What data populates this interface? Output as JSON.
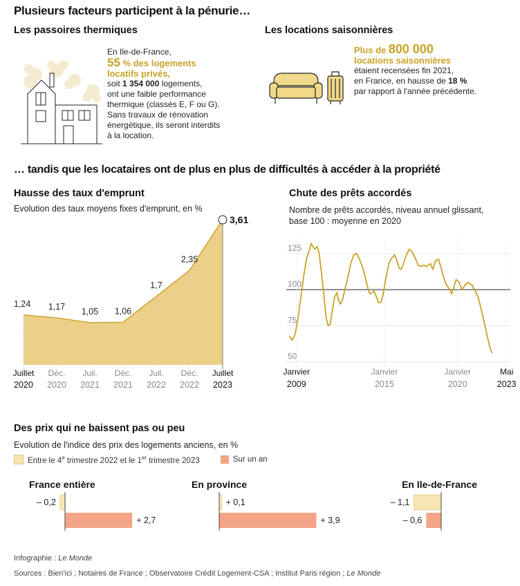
{
  "header": {
    "title": "Plusieurs facteurs participent à la pénurie…",
    "subtitle": "… tandis que les locataires ont de plus en plus de difficultés à accéder à la propriété"
  },
  "passoires": {
    "title": "Les passoires thermiques",
    "line1": "En Ile-de-France,",
    "highlight_number": "55",
    "highlight_text": " % des logements",
    "highlight_line2": "locatifs privés,",
    "line3a": "soit ",
    "line3b": "1 354 000",
    "line3c": " logements,",
    "line4": "ont une faible performance",
    "line5": "thermique (classés E, F ou G).",
    "line6": "Sans travaux de rénovation",
    "line7": "énergétique, ils seront interdits",
    "line8": "à la location."
  },
  "locations": {
    "title": "Les locations saisonnières",
    "highlight_a": "Plus de ",
    "highlight_number": "800 000",
    "highlight_line2": "locations saisonnières",
    "line3": "étaient recensées fin 2021,",
    "line4a": "en France, en hausse de ",
    "line4b": "18 %",
    "line5": "par rapport à l'année précédente."
  },
  "chart_data": [
    {
      "type": "area",
      "title": "Hausse des taux d'emprunt",
      "subtitle": "Evolution des taux moyens fixes d'emprunt, en %",
      "categories": [
        {
          "line1": "Juillet",
          "line2": "2020",
          "bold": true
        },
        {
          "line1": "Déc.",
          "line2": "2020",
          "bold": false
        },
        {
          "line1": "Juil.",
          "line2": "2021",
          "bold": false
        },
        {
          "line1": "Déc.",
          "line2": "2021",
          "bold": false
        },
        {
          "line1": "Juil.",
          "line2": "2022",
          "bold": false
        },
        {
          "line1": "Déc.",
          "line2": "2022",
          "bold": false
        },
        {
          "line1": "Juillet",
          "line2": "2023",
          "bold": true
        }
      ],
      "values": [
        1.24,
        1.17,
        1.05,
        1.06,
        1.7,
        2.35,
        3.61
      ],
      "value_labels": [
        "1,24",
        "1,17",
        "1,05",
        "1,06",
        "1,7",
        "2,35",
        "3,61"
      ],
      "ylim": [
        0,
        3.61
      ],
      "color": "#ecd08a",
      "line_color": "#c9a227"
    },
    {
      "type": "line",
      "title": "Chute des prêts accordés",
      "subtitle_line1": "Nombre de prêts accordés, niveau annuel glissant,",
      "subtitle_line2": "base 100 : moyenne en 2020",
      "yticks": [
        125,
        100,
        75,
        50
      ],
      "ylim": [
        45,
        135
      ],
      "xlim": [
        2008.3,
        2023.6
      ],
      "reference_line": 100,
      "xlabels": [
        {
          "x": 2009,
          "line1": "Janvier",
          "line2": "2009",
          "strong": true
        },
        {
          "x": 2015,
          "line1": "Janvier",
          "line2": "2015",
          "strong": false
        },
        {
          "x": 2020,
          "line1": "Janvier",
          "line2": "2020",
          "strong": false
        },
        {
          "x": 2023.35,
          "line1": "Mai",
          "line2": "2023",
          "strong": true
        }
      ],
      "line_color": "#c9a227",
      "points": [
        [
          2008.5,
          68
        ],
        [
          2008.7,
          65
        ],
        [
          2008.9,
          69
        ],
        [
          2009.1,
          80
        ],
        [
          2009.3,
          95
        ],
        [
          2009.5,
          110
        ],
        [
          2009.7,
          122
        ],
        [
          2009.9,
          128
        ],
        [
          2010.0,
          132
        ],
        [
          2010.1,
          130
        ],
        [
          2010.25,
          128
        ],
        [
          2010.4,
          130
        ],
        [
          2010.55,
          125
        ],
        [
          2010.7,
          112
        ],
        [
          2010.85,
          98
        ],
        [
          2011.0,
          82
        ],
        [
          2011.15,
          75
        ],
        [
          2011.3,
          76
        ],
        [
          2011.45,
          86
        ],
        [
          2011.6,
          95
        ],
        [
          2011.75,
          98
        ],
        [
          2011.85,
          93
        ],
        [
          2012.0,
          90
        ],
        [
          2012.15,
          93
        ],
        [
          2012.3,
          100
        ],
        [
          2012.5,
          108
        ],
        [
          2012.7,
          118
        ],
        [
          2012.9,
          124
        ],
        [
          2013.1,
          125
        ],
        [
          2013.3,
          121
        ],
        [
          2013.5,
          116
        ],
        [
          2013.7,
          108
        ],
        [
          2013.9,
          100
        ],
        [
          2014.0,
          97
        ],
        [
          2014.15,
          98
        ],
        [
          2014.3,
          99
        ],
        [
          2014.45,
          95
        ],
        [
          2014.6,
          91
        ],
        [
          2014.75,
          91
        ],
        [
          2014.9,
          96
        ],
        [
          2015.1,
          108
        ],
        [
          2015.3,
          118
        ],
        [
          2015.5,
          122
        ],
        [
          2015.7,
          124
        ],
        [
          2015.85,
          120
        ],
        [
          2016.0,
          115
        ],
        [
          2016.15,
          114
        ],
        [
          2016.3,
          118
        ],
        [
          2016.5,
          124
        ],
        [
          2016.7,
          128
        ],
        [
          2016.9,
          126
        ],
        [
          2017.1,
          122
        ],
        [
          2017.3,
          117
        ],
        [
          2017.5,
          116
        ],
        [
          2017.7,
          117
        ],
        [
          2017.85,
          116
        ],
        [
          2018.0,
          117
        ],
        [
          2018.15,
          118
        ],
        [
          2018.3,
          114
        ],
        [
          2018.5,
          120
        ],
        [
          2018.7,
          121
        ],
        [
          2018.85,
          116
        ],
        [
          2019.0,
          110
        ],
        [
          2019.2,
          104
        ],
        [
          2019.4,
          101
        ],
        [
          2019.6,
          97
        ],
        [
          2019.75,
          102
        ],
        [
          2019.9,
          107
        ],
        [
          2020.1,
          105
        ],
        [
          2020.3,
          100
        ],
        [
          2020.5,
          103
        ],
        [
          2020.7,
          105
        ],
        [
          2020.85,
          104
        ],
        [
          2021.0,
          103
        ],
        [
          2021.2,
          99
        ],
        [
          2021.4,
          95
        ],
        [
          2021.6,
          87
        ],
        [
          2021.8,
          78
        ],
        [
          2022.0,
          69
        ],
        [
          2022.2,
          60
        ],
        [
          2022.35,
          56
        ]
      ]
    },
    {
      "type": "bar",
      "title": "Des prix qui ne baissent pas ou peu",
      "subtitle": "Evolution de l'indice des prix des logements anciens, en %",
      "legend": [
        {
          "label_a": "Entre le 4",
          "label_sup1": "e",
          "label_b": " trimestre 2022 et le 1",
          "label_sup2": "er",
          "label_c": " trimestre 2023",
          "color": "#f6e6b3"
        },
        {
          "label": "Sur un an",
          "color": "#f4a486"
        }
      ],
      "series_colors": {
        "quarter": "#f6e6b3",
        "year": "#f4a486"
      },
      "groups": [
        {
          "name": "France entière",
          "quarter": -0.2,
          "quarter_label": "– 0,2",
          "year": 2.7,
          "year_label": "+ 2,7"
        },
        {
          "name": "En province",
          "quarter": 0.1,
          "quarter_label": "+ 0,1",
          "year": 3.9,
          "year_label": "+ 3,9"
        },
        {
          "name": "En Ile-de-France",
          "quarter": -1.1,
          "quarter_label": "– 1,1",
          "year": -0.6,
          "year_label": "– 0,6"
        }
      ]
    }
  ],
  "footer": {
    "credit_a": "Infographie : ",
    "credit_b": "Le Monde",
    "sources_a": "Sources : Bien'ici ; Notaires de France ; Observatoire Crédit Logement-CSA ; Institut Paris région ; ",
    "sources_b": "Le Monde"
  }
}
